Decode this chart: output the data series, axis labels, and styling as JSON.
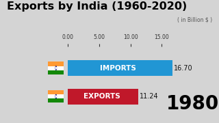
{
  "title1": "Exports by India",
  "title2": " (1960-2020)",
  "subtitle": "( in Billion $ )",
  "year": "1980",
  "categories": [
    "IMPORTS",
    "EXPORTS"
  ],
  "values": [
    16.7,
    11.24
  ],
  "bar_colors": [
    "#2196d4",
    "#c0182a"
  ],
  "background_color": "#d4d4d4",
  "xlim_max": 17.5,
  "xticks": [
    0.0,
    5.0,
    10.0,
    15.0
  ],
  "flag_orange": "#FF9933",
  "flag_white": "#FFFFFF",
  "flag_green": "#138808",
  "flag_navy": "#000080",
  "bar_height": 0.55
}
